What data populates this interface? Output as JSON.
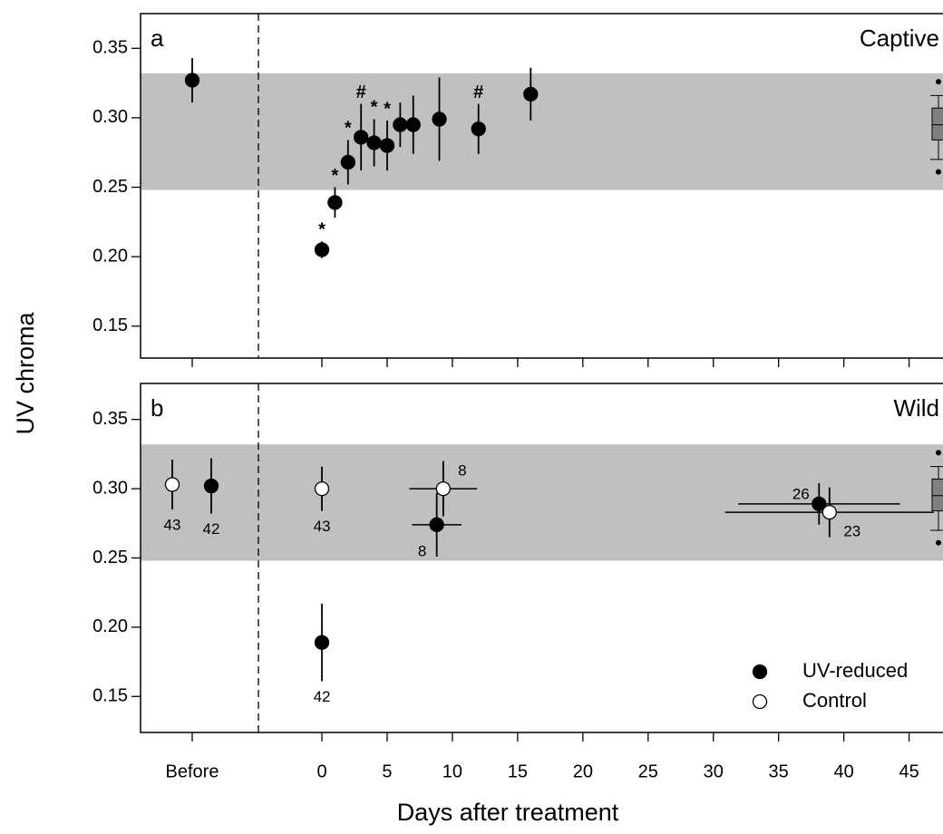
{
  "chart_data": [
    {
      "type": "scatter",
      "panel_label": "a",
      "title": "Captive",
      "ylabel": "UV chroma",
      "ylim": [
        0.127,
        0.375
      ],
      "yticks": [
        0.15,
        {
          "value": 0.2,
          "label": "0.20"
        },
        0.25,
        {
          "value": 0.3,
          "label": "0.30"
        },
        0.35
      ],
      "band": [
        0.248,
        0.332
      ],
      "band_color": "#c0c0c0",
      "box": {
        "min": 0.27,
        "q1": 0.284,
        "median": 0.295,
        "q3": 0.307,
        "max": 0.316,
        "outliers": [
          0.326,
          0.261
        ],
        "color": "#808080"
      },
      "series": [
        {
          "color": "#000000",
          "before": {
            "value": 0.327,
            "error": 0.016
          },
          "x": [
            0,
            1,
            2,
            3,
            4,
            5,
            6,
            7,
            9,
            12,
            16
          ],
          "values": [
            0.205,
            0.239,
            0.268,
            0.286,
            0.282,
            0.28,
            0.295,
            0.295,
            0.299,
            0.292,
            0.317
          ],
          "errors": [
            0.006,
            0.011,
            0.016,
            0.024,
            0.017,
            0.018,
            0.016,
            0.021,
            0.03,
            0.018,
            0.019
          ],
          "annotations": [
            "*",
            "*",
            "*",
            "#",
            "*",
            "*",
            null,
            null,
            null,
            "#",
            null
          ]
        }
      ]
    },
    {
      "type": "scatter",
      "panel_label": "b",
      "title": "Wild",
      "xlabel": "Days after treatment",
      "before_label": "Before",
      "xlim": [
        -13.9,
        47.6
      ],
      "xticks": [
        0,
        5,
        10,
        15,
        20,
        25,
        30,
        35,
        40,
        45
      ],
      "ylim": [
        0.124,
        0.376
      ],
      "yticks": [
        0.15,
        {
          "value": 0.2,
          "label": "0.20"
        },
        0.25,
        {
          "value": 0.3,
          "label": "0.30"
        },
        0.35
      ],
      "band": [
        0.248,
        0.332
      ],
      "band_color": "#c0c0c0",
      "box": {
        "min": 0.27,
        "q1": 0.284,
        "median": 0.295,
        "q3": 0.307,
        "max": 0.316,
        "outliers": [
          0.326,
          0.261
        ],
        "color": "#808080"
      },
      "legend": "lower right",
      "series": [
        {
          "name": "UV-reduced",
          "color": "#000000",
          "before": {
            "value": 0.302,
            "error": 0.02,
            "n": 42
          },
          "x": [
            0,
            8.8,
            38.1
          ],
          "x_errors": [
            null,
            1.9,
            6.2
          ],
          "values": [
            0.189,
            0.274,
            0.289
          ],
          "errors": [
            0.028,
            0.023,
            0.015
          ],
          "n": [
            42,
            8,
            26
          ]
        },
        {
          "name": "Control",
          "color": "#ffffff",
          "before": {
            "value": 0.303,
            "error": 0.018,
            "n": 43
          },
          "x": [
            0,
            9.3,
            38.9
          ],
          "x_errors": [
            null,
            2.6,
            8.0
          ],
          "values": [
            0.3,
            0.3,
            0.283
          ],
          "errors": [
            0.016,
            0.02,
            0.018
          ],
          "n": [
            43,
            8,
            23
          ]
        }
      ]
    }
  ]
}
